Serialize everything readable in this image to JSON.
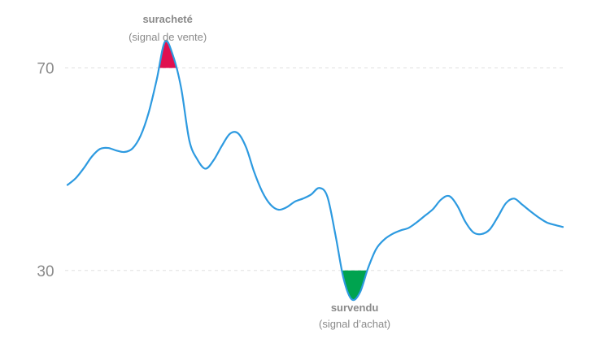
{
  "chart_data": {
    "type": "line",
    "title": "",
    "xlabel": "",
    "ylabel": "",
    "ylim": [
      23.7,
      75.4
    ],
    "yticks": [
      70,
      30
    ],
    "grid": true,
    "x": [
      0,
      1,
      2,
      3,
      4,
      5,
      6,
      7,
      8,
      9,
      10,
      11,
      12,
      13,
      14,
      15,
      16,
      17,
      18,
      19,
      20,
      21,
      22,
      23,
      24,
      25,
      26,
      27,
      28,
      29,
      30,
      31,
      32,
      33,
      34,
      35,
      36,
      37,
      38,
      39,
      40,
      41,
      42,
      43,
      44,
      45,
      46,
      47,
      48,
      49,
      50,
      51,
      52,
      53,
      54,
      55,
      56,
      57,
      58,
      59,
      60,
      61
    ],
    "series": [
      {
        "values": [
          46.9,
          48.2,
          50.2,
          52.5,
          54.0,
          54.2,
          53.7,
          53.4,
          54.1,
          56.6,
          61.2,
          67.8,
          75.2,
          72.4,
          66.0,
          55.7,
          51.9,
          50.1,
          51.8,
          54.6,
          57.0,
          57.1,
          54.3,
          49.4,
          45.5,
          43.0,
          42.0,
          42.5,
          43.6,
          44.2,
          45.0,
          46.3,
          44.6,
          37.0,
          28.4,
          24.3,
          25.6,
          30.4,
          34.2,
          36.1,
          37.2,
          37.9,
          38.4,
          39.5,
          40.8,
          42.1,
          44.0,
          44.7,
          42.8,
          39.6,
          37.5,
          37.2,
          38.1,
          40.6,
          43.3,
          44.2,
          43.0,
          41.7,
          40.5,
          39.5,
          39.0,
          38.6
        ]
      }
    ],
    "colors": {
      "line": "#2d9ae0",
      "overbought": "#e0104f",
      "oversold": "#00a34f",
      "grid": "#e0e0e0"
    },
    "zones": {
      "upper": 70,
      "lower": 30
    },
    "annotations": [
      {
        "title": "suracheté",
        "subtitle": "(signal de vente)",
        "at": "peak-above-upper"
      },
      {
        "title": "survendu",
        "subtitle": "(signal d’achat)",
        "at": "trough-below-lower"
      }
    ]
  }
}
